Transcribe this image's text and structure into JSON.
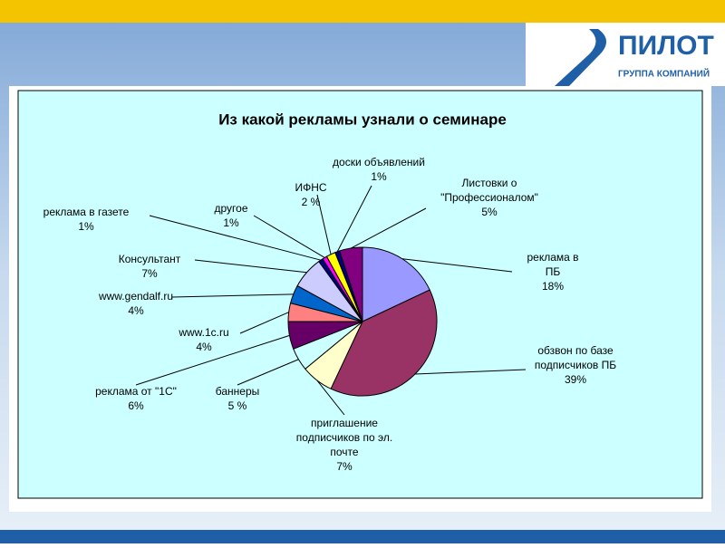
{
  "logo": {
    "name": "ПИЛОТ",
    "subtitle": "ГРУППА КОМПАНИЙ"
  },
  "chart_data": {
    "type": "pie",
    "title": "Из какой рекламы узнали о семинаре",
    "categories": [
      [
        "реклама в",
        "ПБ"
      ],
      [
        "обзвон по базе",
        "подписчиков ПБ"
      ],
      [
        "приглашение",
        "подписчиков по эл.",
        "почте"
      ],
      [
        "баннеры"
      ],
      [
        "реклама от \"1С\""
      ],
      [
        "www.1c.ru"
      ],
      [
        "www.gendalf.ru"
      ],
      [
        "Консультант"
      ],
      [
        "реклама в газете"
      ],
      [
        "другое"
      ],
      [
        "ИФНС"
      ],
      [
        "доски объявлений"
      ],
      [
        "Листовки о",
        "\"Профессионалом\""
      ]
    ],
    "values": [
      18,
      39,
      7,
      5,
      6,
      4,
      4,
      7,
      1,
      1,
      2,
      1,
      5
    ],
    "value_labels": [
      "18%",
      "39%",
      "7%",
      "5 %",
      "6%",
      "4%",
      "4%",
      "7%",
      "1%",
      "1%",
      "2 %",
      "1%",
      "5%"
    ],
    "colors": [
      "#9999ff",
      "#993366",
      "#ffffcc",
      "#ccffff",
      "#660066",
      "#ff8080",
      "#0066cc",
      "#ccccff",
      "#000080",
      "#ff00ff",
      "#ffff00",
      "#000080",
      "#800080"
    ]
  }
}
